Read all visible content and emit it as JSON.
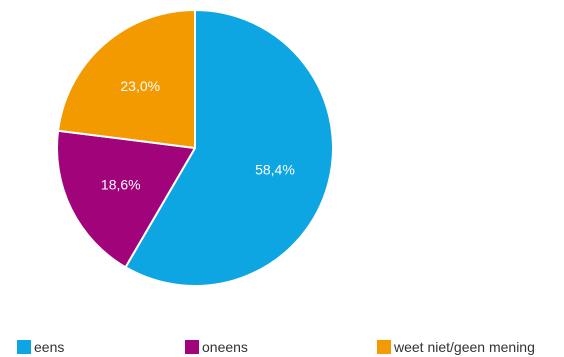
{
  "chart_data": {
    "type": "pie",
    "categories": [
      "eens",
      "oneens",
      "weet niet/geen mening"
    ],
    "values": [
      58.4,
      18.6,
      23.0
    ],
    "labels": [
      "58,4%",
      "18,6%",
      "23,0%"
    ],
    "colors": [
      "#0ea5e3",
      "#a0037a",
      "#f39a00"
    ],
    "legend_position": "bottom",
    "start_angle_deg": 0,
    "direction": "clockwise"
  }
}
